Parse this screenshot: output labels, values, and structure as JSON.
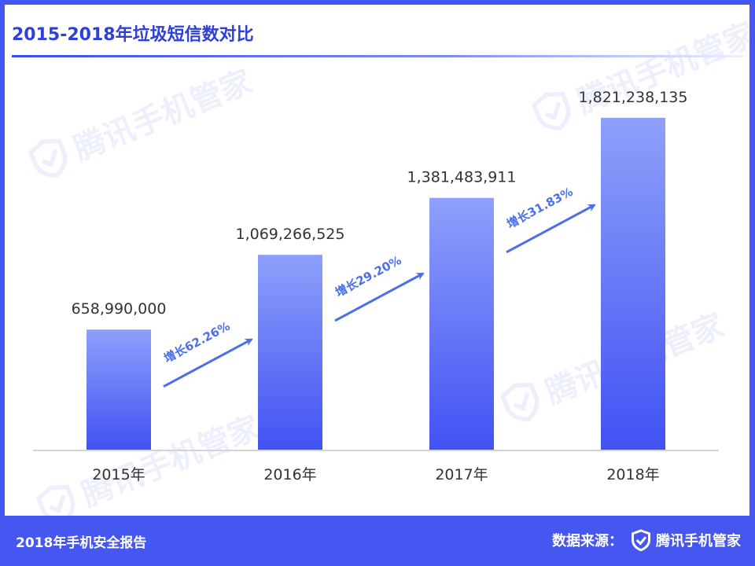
{
  "watermark_text": "腾讯手机管家",
  "chart_data": {
    "type": "bar",
    "title": "2015-2018年垃圾短信数对比",
    "categories": [
      "2015年",
      "2016年",
      "2017年",
      "2018年"
    ],
    "values": [
      658990000,
      1069266525,
      1381483911,
      1821238135
    ],
    "value_labels": [
      "658,990,000",
      "1,069,266,525",
      "1,381,483,911",
      "1,821,238,135"
    ],
    "growth_labels": [
      "增长62.26%",
      "增长29.20%",
      "增长31.83%"
    ],
    "ylim": [
      0,
      2200000000
    ],
    "grid": false,
    "bar_gradient": [
      "#4152f4",
      "#8ea0fa"
    ],
    "annotation_color": "#4a6fe8"
  },
  "footer": {
    "left": "2018年手机安全报告",
    "source_label": "数据来源：",
    "brand": "腾讯手机管家"
  }
}
